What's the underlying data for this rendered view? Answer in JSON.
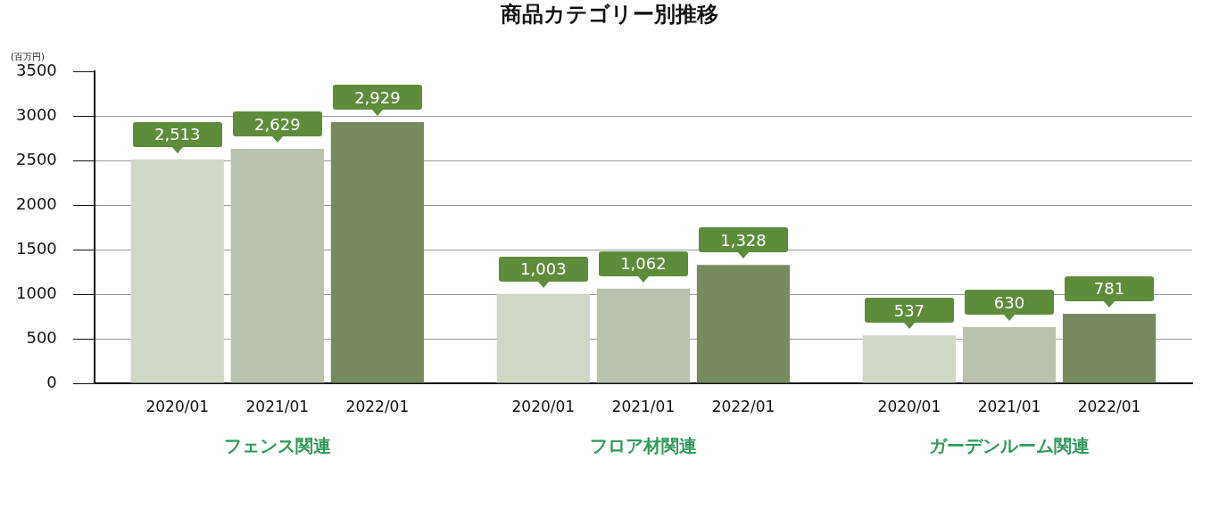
{
  "chart_data": {
    "type": "bar",
    "title": "商品カテゴリー別推移",
    "ylabel": "(百万円)",
    "categories": [
      "フェンス関連",
      "フロア材関連",
      "ガーデンルーム関連"
    ],
    "series": [
      {
        "name": "2020/01",
        "color": "#cfd7c7",
        "values": [
          2513,
          1003,
          537
        ],
        "value_labels": [
          "2,513",
          "1,003",
          "537"
        ]
      },
      {
        "name": "2021/01",
        "color": "#b8c2ae",
        "values": [
          2629,
          1062,
          630
        ],
        "value_labels": [
          "2,629",
          "1,062",
          "630"
        ]
      },
      {
        "name": "2022/01",
        "color": "#778a5f",
        "values": [
          2929,
          1328,
          781
        ],
        "value_labels": [
          "2,929",
          "1,328",
          "781"
        ]
      }
    ],
    "ylim": [
      0,
      3500
    ],
    "yticks": [
      0,
      500,
      1000,
      1500,
      2000,
      2500,
      3000,
      3500
    ],
    "grid": "y",
    "legend": false
  }
}
